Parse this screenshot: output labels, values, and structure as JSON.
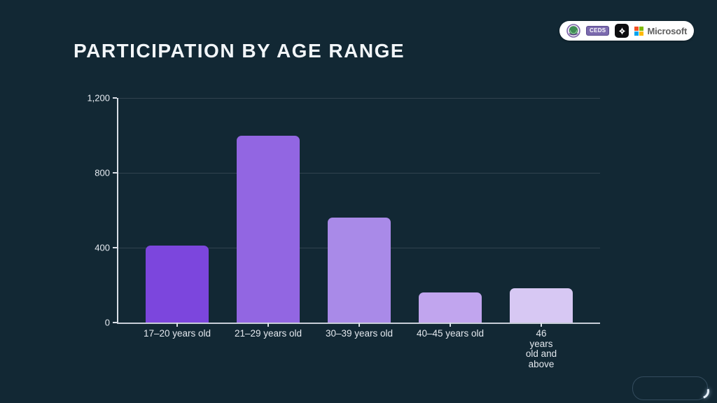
{
  "title": "PARTICIPATION BY AGE RANGE",
  "logos": {
    "ceds_label": "CEDS",
    "microsoft_label": "Microsoft",
    "microsoft_colors": [
      "#f25022",
      "#7fba00",
      "#00a4ef",
      "#ffb900"
    ]
  },
  "chart_data": {
    "type": "bar",
    "title": "PARTICIPATION BY AGE RANGE",
    "categories": [
      "17–20 years old",
      "21–29 years old",
      "30–39 years old",
      "40–45 years old",
      "46 years old and above"
    ],
    "values": [
      410,
      1000,
      560,
      160,
      185
    ],
    "bar_colors": [
      "#7c46dd",
      "#9266e2",
      "#a98ae8",
      "#c1a5ee",
      "#d7c8f3"
    ],
    "xlabel": "",
    "ylabel": "",
    "ylim": [
      0,
      1200
    ],
    "yticks": [
      0,
      400,
      800,
      1200
    ],
    "ytick_labels": [
      "0",
      "400",
      "800",
      "1,200"
    ],
    "grid": true,
    "legend": false
  },
  "colors": {
    "background": "#122834",
    "title_text": "#f2f6f9",
    "gridline": "#31434f",
    "axis_line": "#d9dfe7",
    "tick_label": "#e6ebf1"
  }
}
